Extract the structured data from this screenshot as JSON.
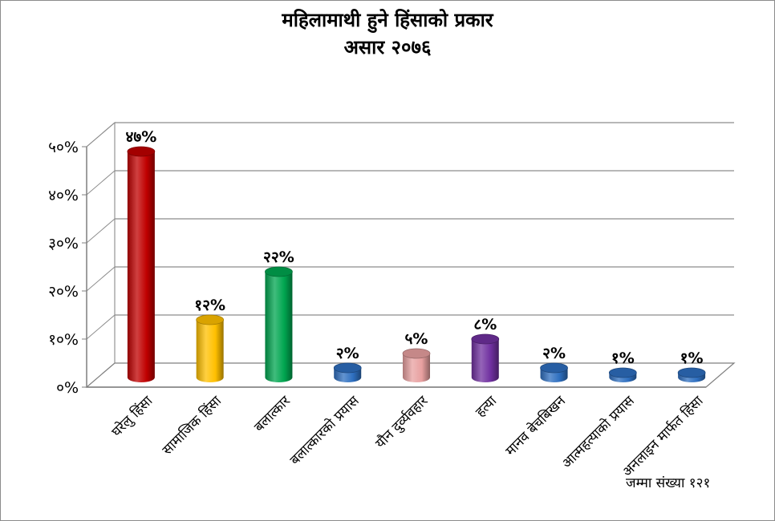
{
  "chart_data": {
    "type": "bar",
    "title": "महिलामाथी हुने हिंसाको प्रकार",
    "subtitle": "असार २०७६",
    "categories": [
      "घरेलु हिंसा",
      "सामाजिक हिंसा",
      "बलात्कार",
      "बलात्कारको प्रयास",
      "यौन दुर्व्यवहार",
      "हत्या",
      "मानव बेचबिखन",
      "आत्महत्याको प्रयास",
      "अनलाइन मार्फत हिंसा"
    ],
    "values": [
      47,
      12,
      22,
      2,
      5,
      8,
      2,
      1,
      1
    ],
    "data_labels": [
      "४७%",
      "१२%",
      "२२%",
      "२%",
      "५%",
      "८%",
      "२%",
      "१%",
      "१%"
    ],
    "colors": [
      "#c00000",
      "#ffc000",
      "#00a650",
      "#2e6fc0",
      "#e8a0a0",
      "#7030a0",
      "#2e6fc0",
      "#2e6fc0",
      "#2e6fc0"
    ],
    "ylim": [
      0,
      50
    ],
    "yticks": [
      "०%",
      "१०%",
      "२०%",
      "३०%",
      "४०%",
      "५०%"
    ],
    "grid": true,
    "note": "जम्मा संख्या १२१"
  }
}
